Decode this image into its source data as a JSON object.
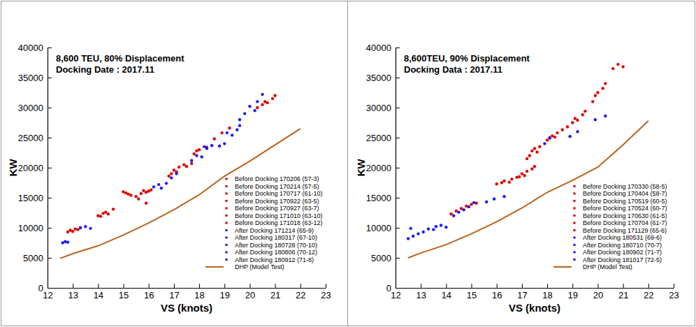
{
  "chart_data": [
    {
      "type": "scatter",
      "title": "8,600 TEU, 80% Displacement",
      "subtitle": "Docking Date : 2017.11",
      "x_label": "VS (knots)",
      "y_label": "KW",
      "xlim": [
        12,
        23
      ],
      "xticks": [
        12,
        13,
        14,
        15,
        16,
        17,
        18,
        19,
        20,
        21,
        22,
        23
      ],
      "ylim": [
        0,
        40000
      ],
      "yticks": [
        0,
        5000,
        10000,
        15000,
        20000,
        25000,
        30000,
        35000,
        40000
      ],
      "legend": "lower right",
      "series": [
        {
          "name": "Before Docking 170206 (57-3)",
          "color": "#e00000",
          "x": [
            12.8,
            12.9,
            13.0,
            13.1,
            13.2,
            13.3
          ],
          "values": [
            9300,
            9600,
            9400,
            9800,
            9700,
            10000
          ]
        },
        {
          "name": "Before Docking 170214 (57-5)",
          "color": "#e00000",
          "x": [
            14.0,
            14.1,
            14.2,
            14.3,
            14.4,
            14.6
          ],
          "values": [
            12000,
            11900,
            12400,
            12600,
            12300,
            13100
          ]
        },
        {
          "name": "Before Docking 170717 (61-10)",
          "color": "#e00000",
          "x": [
            15.0,
            15.1,
            15.2,
            15.3,
            15.5,
            15.6
          ],
          "values": [
            16000,
            15800,
            15600,
            15400,
            15200,
            14800
          ]
        },
        {
          "name": "Before Docking 170922 (63-5)",
          "color": "#e00000",
          "x": [
            15.7,
            15.8,
            15.9,
            16.0,
            16.1,
            15.9
          ],
          "values": [
            15700,
            16200,
            15900,
            16100,
            16300,
            14100
          ]
        },
        {
          "name": "Before Docking 170927 (63-7)",
          "color": "#e00000",
          "x": [
            16.8,
            16.9,
            17.0,
            17.1,
            17.2,
            17.4
          ],
          "values": [
            18600,
            19000,
            19600,
            19300,
            20100,
            20500
          ]
        },
        {
          "name": "Before Docking 171010 (63-10)",
          "color": "#e00000",
          "x": [
            17.5,
            17.7,
            17.8,
            17.9,
            18.0,
            18.3
          ],
          "values": [
            20200,
            20700,
            22300,
            22800,
            23000,
            23400
          ]
        },
        {
          "name": "Before Docking 171018 (63-12)",
          "color": "#e00000",
          "x": [
            18.6,
            18.9,
            19.2,
            20.3,
            20.5,
            20.6,
            20.7,
            20.9,
            21.0
          ],
          "values": [
            24800,
            25800,
            26600,
            30000,
            30500,
            31000,
            30800,
            31500,
            32000
          ]
        },
        {
          "name": "After Docking 171214 (65-9)",
          "color": "#1a1aff",
          "x": [
            12.6,
            12.7,
            12.8,
            13.3,
            13.5,
            13.7
          ],
          "values": [
            7500,
            7700,
            7600,
            10000,
            10200,
            9900
          ]
        },
        {
          "name": "After Docking 180317 (67-10)",
          "color": "#1a1aff",
          "x": [
            16.2,
            16.4,
            16.5,
            16.7,
            16.9,
            17.1
          ],
          "values": [
            16800,
            17200,
            16600,
            17400,
            18300,
            19000
          ]
        },
        {
          "name": "After Docking 180728 (70-10)",
          "color": "#1a1aff",
          "x": [
            17.7,
            17.9,
            18.1,
            18.2,
            18.3,
            18.5
          ],
          "values": [
            21200,
            22000,
            21800,
            23500,
            23200,
            23700
          ]
        },
        {
          "name": "After Docking 180806 (70-12)",
          "color": "#1a1aff",
          "x": [
            18.8,
            19.0,
            19.1,
            19.3,
            19.5,
            19.6
          ],
          "values": [
            23600,
            24000,
            25800,
            25400,
            26300,
            27000
          ]
        },
        {
          "name": "After Docking 180912 (71-8)",
          "color": "#1a1aff",
          "x": [
            19.6,
            19.8,
            20.0,
            20.2,
            20.3,
            20.5
          ],
          "values": [
            28000,
            29000,
            30200,
            29500,
            31000,
            32200
          ]
        },
        {
          "name": "DHP (Model Test)",
          "color": "#b8621b",
          "type": "line",
          "x": [
            12.5,
            13,
            14,
            15,
            16,
            17,
            18,
            19,
            20,
            21,
            22
          ],
          "values": [
            4900,
            5700,
            7000,
            8800,
            10800,
            13000,
            15500,
            18600,
            21100,
            23800,
            26500
          ]
        }
      ]
    },
    {
      "type": "scatter",
      "title": "8,600TEU, 90% Displacement",
      "subtitle": "Docking Data : 2017.11",
      "x_label": "VS (knots)",
      "y_label": "KW",
      "xlim": [
        12,
        23
      ],
      "xticks": [
        12,
        13,
        14,
        15,
        16,
        17,
        18,
        19,
        20,
        21,
        22,
        23
      ],
      "ylim": [
        0,
        40000
      ],
      "yticks": [
        0,
        5000,
        10000,
        15000,
        20000,
        25000,
        30000,
        35000,
        40000
      ],
      "legend": "lower right",
      "series": [
        {
          "name": "Before Docking 170330 (58-5)",
          "color": "#e00000",
          "x": [
            14.2,
            14.4,
            14.6,
            14.8,
            15.0,
            15.2
          ],
          "values": [
            12300,
            12800,
            13200,
            13600,
            13900,
            14100
          ]
        },
        {
          "name": "Before Docking 170404 (58-7)",
          "color": "#e00000",
          "x": [
            16.0,
            16.2,
            16.3,
            16.5,
            16.6,
            16.8
          ],
          "values": [
            17300,
            17500,
            17800,
            17600,
            18100,
            18400
          ]
        },
        {
          "name": "Before Docking 170519 (60-5)",
          "color": "#e00000",
          "x": [
            16.9,
            17.0,
            17.1,
            17.2,
            17.4,
            17.5
          ],
          "values": [
            18500,
            19000,
            18700,
            19400,
            19800,
            20200
          ]
        },
        {
          "name": "Before Docking 170524 (60-7)",
          "color": "#e00000",
          "x": [
            17.3,
            17.4,
            17.5,
            17.6,
            17.7,
            17.2
          ],
          "values": [
            22000,
            22800,
            23200,
            22600,
            23500,
            21500
          ]
        },
        {
          "name": "Before Docking 170630 (61-5)",
          "color": "#e00000",
          "x": [
            18.0,
            18.1,
            18.2,
            18.3,
            18.4,
            18.6
          ],
          "values": [
            24600,
            24900,
            25300,
            25100,
            25800,
            26300
          ]
        },
        {
          "name": "Before Docking 170704 (61-7)",
          "color": "#e00000",
          "x": [
            18.8,
            19.0,
            19.1,
            19.2,
            19.4,
            19.5
          ],
          "values": [
            26800,
            27500,
            28200,
            27900,
            28800,
            29400
          ]
        },
        {
          "name": "Before Docking 171129 (65-6)",
          "color": "#e00000",
          "x": [
            19.8,
            19.9,
            20.0,
            20.2,
            20.3,
            20.6,
            20.8,
            21.0
          ],
          "values": [
            31000,
            32000,
            32500,
            33200,
            34000,
            36500,
            37200,
            36800
          ]
        },
        {
          "name": "After Docking 180531 (69-6)",
          "color": "#1a1aff",
          "x": [
            12.5,
            12.7,
            12.9,
            13.1,
            13.3,
            12.6
          ],
          "values": [
            8200,
            8600,
            9000,
            9300,
            9800,
            9900
          ]
        },
        {
          "name": "After Docking 180710 (70-7)",
          "color": "#1a1aff",
          "x": [
            13.5,
            13.6,
            13.8,
            14.0,
            14.3,
            14.5
          ],
          "values": [
            9700,
            10200,
            10400,
            10100,
            12000,
            12600
          ]
        },
        {
          "name": "After Docking 180902 (71-7)",
          "color": "#1a1aff",
          "x": [
            14.7,
            14.9,
            15.1,
            15.6,
            15.9,
            16.3
          ],
          "values": [
            13000,
            13500,
            14200,
            14300,
            14800,
            15200
          ]
        },
        {
          "name": "After Docking 181017 (72-5)",
          "color": "#1a1aff",
          "x": [
            17.9,
            18.1,
            18.9,
            19.2,
            19.9,
            20.3
          ],
          "values": [
            24000,
            25000,
            25200,
            26000,
            28000,
            28600
          ]
        },
        {
          "name": "DHP (Model Test)",
          "color": "#b8621b",
          "type": "line",
          "x": [
            12.5,
            13,
            14,
            15,
            16,
            17,
            18,
            19,
            20,
            21,
            22
          ],
          "values": [
            5000,
            5800,
            7200,
            9000,
            11000,
            13300,
            15900,
            17900,
            20100,
            23800,
            27800
          ]
        }
      ]
    }
  ]
}
